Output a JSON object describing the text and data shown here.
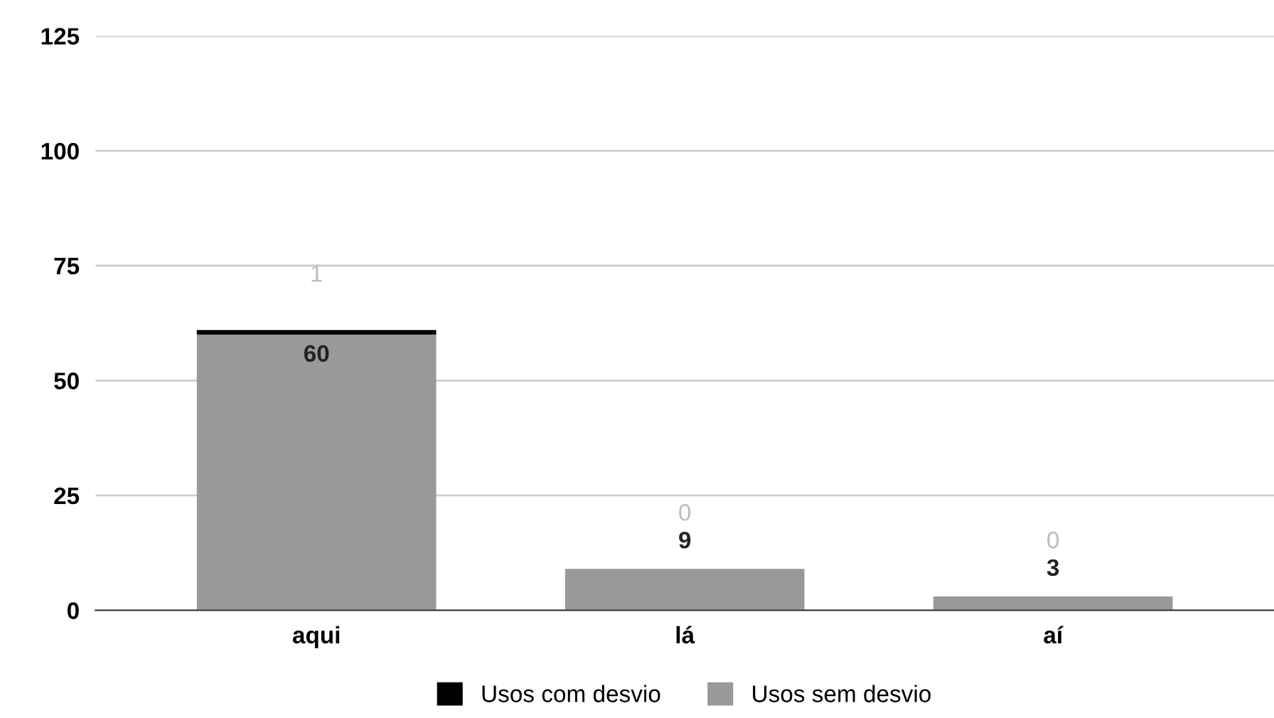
{
  "chart_data": {
    "type": "bar",
    "stacked": true,
    "categories": [
      "aqui",
      "lá",
      "aí"
    ],
    "series": [
      {
        "name": "Usos sem desvio",
        "color": "#999999",
        "values": [
          60,
          9,
          3
        ]
      },
      {
        "name": "Usos com desvio",
        "color": "#000000",
        "values": [
          1,
          0,
          0
        ]
      }
    ],
    "ylim": [
      0,
      125
    ],
    "yticks": [
      0,
      25,
      50,
      75,
      100,
      125
    ],
    "grid": "y",
    "legend": "bottom",
    "data_labels": true
  }
}
